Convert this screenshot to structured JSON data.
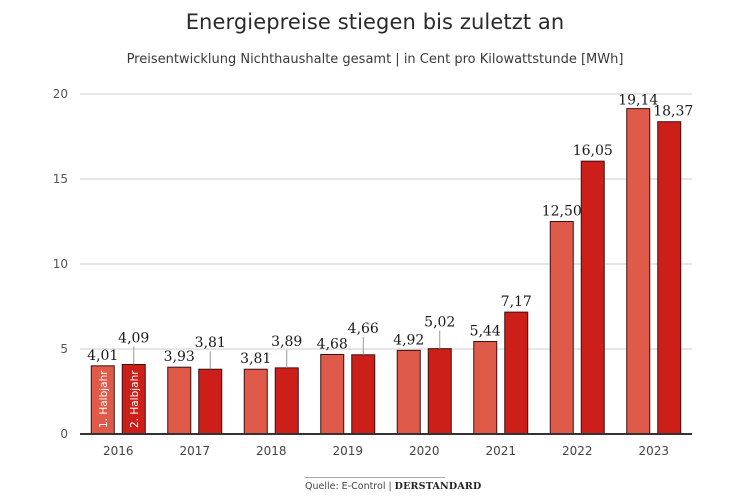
{
  "header": {
    "title": "Energiepreise stiegen bis zuletzt an",
    "subtitle": "Preisentwicklung Nichthaushalte gesamt | in Cent pro Kilowattstunde [MWh]"
  },
  "footer": {
    "source": "Quelle: E-Control",
    "separator": "|",
    "brand": "DERSTANDARD"
  },
  "colors": {
    "first_half": "#df5a48",
    "second_half": "#cc1f1a",
    "bar_outline": "#3a1010",
    "grid": "#c8ccd0",
    "axis": "#333333"
  },
  "chart_data": {
    "type": "bar",
    "title": "Energiepreise stiegen bis zuletzt an",
    "subtitle": "Preisentwicklung Nichthaushalte gesamt | in Cent pro Kilowattstunde [MWh]",
    "xlabel": "",
    "ylabel": "",
    "ylim": [
      0,
      20
    ],
    "yticks": [
      0,
      5,
      10,
      15,
      20
    ],
    "grid": true,
    "categories": [
      "2016",
      "2017",
      "2018",
      "2019",
      "2020",
      "2021",
      "2022",
      "2023"
    ],
    "series": [
      {
        "name": "1. Halbjahr",
        "values": [
          4.01,
          3.93,
          3.81,
          4.68,
          4.92,
          5.44,
          12.5,
          19.14
        ],
        "labels": [
          "4,01",
          "3,93",
          "3,81",
          "4,68",
          "4,92",
          "5,44",
          "12,50",
          "19,14"
        ]
      },
      {
        "name": "2. Halbjahr",
        "values": [
          4.09,
          3.81,
          3.89,
          4.66,
          5.02,
          7.17,
          16.05,
          18.37
        ],
        "labels": [
          "4,09",
          "3,81",
          "3,89",
          "4,66",
          "5,02",
          "7,17",
          "16,05",
          "18,37"
        ]
      }
    ],
    "legend": "inside-first-bars"
  }
}
